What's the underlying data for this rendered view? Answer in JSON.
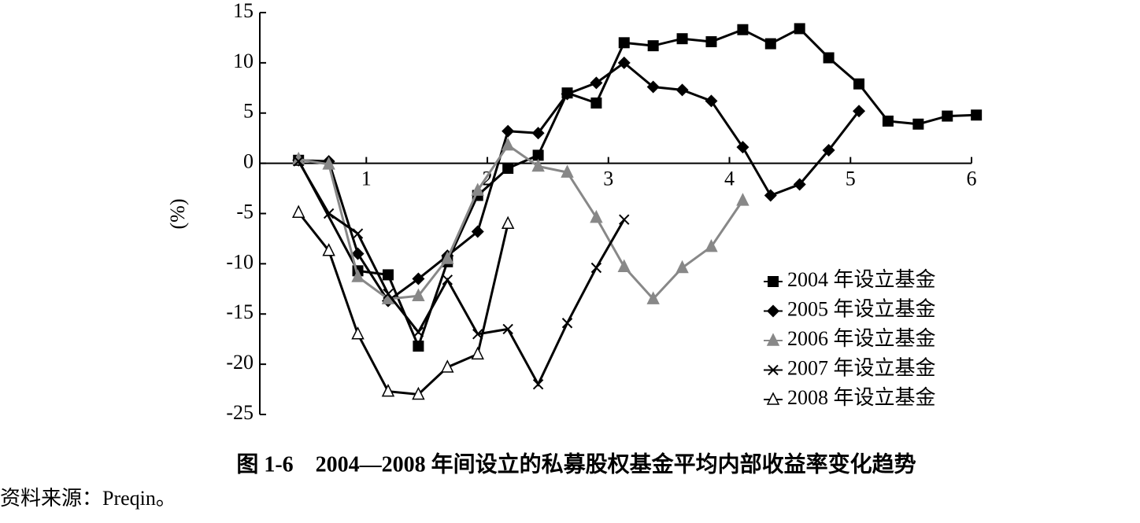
{
  "chart_data": {
    "type": "line",
    "caption": "图 1-6　2004—2008 年间设立的私募股权基金平均内部收益率变化趋势",
    "source": "资料来源：Preqin。",
    "y_label": "(%)",
    "xlim": [
      0.12,
      6
    ],
    "xticks": [
      1,
      2,
      3,
      4,
      5,
      6
    ],
    "ylim": [
      -25,
      15
    ],
    "yticks": [
      -25,
      -20,
      -15,
      -10,
      -5,
      0,
      5,
      10,
      15
    ],
    "legend": "lower right",
    "series": [
      {
        "name": "2004 年设立基金",
        "color": "#000000",
        "marker": "square",
        "x": [
          0.44,
          0.93,
          1.18,
          1.43,
          1.67,
          1.92,
          2.17,
          2.42,
          2.66,
          2.9,
          3.13,
          3.37,
          3.61,
          3.85,
          4.11,
          4.34,
          4.58,
          4.82,
          5.07,
          5.31,
          5.56,
          5.8,
          6.04
        ],
        "values": [
          0.3,
          -10.7,
          -11.1,
          -18.2,
          -9.8,
          -3.2,
          -0.5,
          0.8,
          7,
          6,
          12,
          11.7,
          12.4,
          12.1,
          13.3,
          11.9,
          13.4,
          10.5,
          7.9,
          4.2,
          3.9,
          4.7,
          4.8
        ]
      },
      {
        "name": "2005 年设立基金",
        "color": "#000000",
        "marker": "diamond",
        "x": [
          0.44,
          0.69,
          0.93,
          1.18,
          1.43,
          1.67,
          1.92,
          2.17,
          2.42,
          2.66,
          2.9,
          3.13,
          3.37,
          3.61,
          3.85,
          4.11,
          4.34,
          4.58,
          4.82,
          5.07
        ],
        "values": [
          0.3,
          0.2,
          -9,
          -13.7,
          -11.5,
          -9.2,
          -6.8,
          3.2,
          3,
          6.9,
          8,
          10,
          7.6,
          7.3,
          6.2,
          1.6,
          -3.2,
          -2.1,
          1.3,
          5.2
        ]
      },
      {
        "name": "2006 年设立基金",
        "color": "#888888",
        "marker": "triangle",
        "x": [
          0.44,
          0.69,
          0.93,
          1.18,
          1.43,
          1.67,
          1.92,
          2.17,
          2.42,
          2.66,
          2.9,
          3.13,
          3.37,
          3.61,
          3.85,
          4.11
        ],
        "values": [
          0.4,
          -0.1,
          -11.3,
          -13.5,
          -13.2,
          -9.5,
          -2.7,
          1.8,
          -0.3,
          -0.9,
          -5.4,
          -10.3,
          -13.5,
          -10.4,
          -8.3,
          -3.7
        ]
      },
      {
        "name": "2007 年设立基金",
        "color": "#000000",
        "marker": "cross",
        "x": [
          0.44,
          0.69,
          0.93,
          1.18,
          1.43,
          1.67,
          1.92,
          2.17,
          2.42,
          2.66,
          2.9,
          3.13
        ],
        "values": [
          0.2,
          -5,
          -7,
          -13,
          -16.8,
          -11.6,
          -17,
          -16.5,
          -22,
          -15.9,
          -10.4,
          -5.6
        ]
      },
      {
        "name": "2008 年设立基金",
        "color": "#000000",
        "marker": "open-triangle",
        "x": [
          0.44,
          0.69,
          0.93,
          1.18,
          1.43,
          1.67,
          1.92,
          2.17
        ],
        "values": [
          -4.9,
          -8.7,
          -17,
          -22.7,
          -23,
          -20.3,
          -19,
          -6
        ]
      }
    ]
  }
}
